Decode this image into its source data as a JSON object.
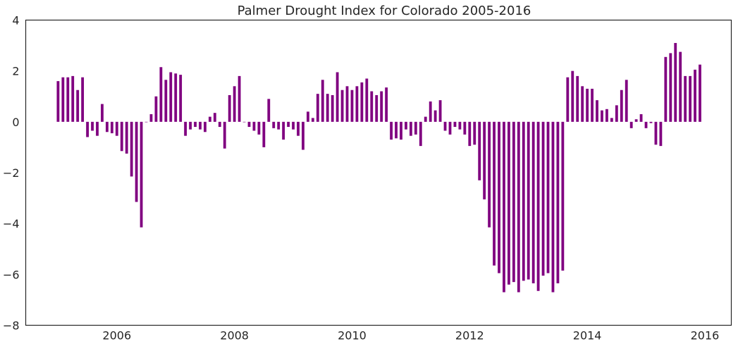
{
  "chart_data": {
    "type": "bar",
    "title": "Palmer Drought Index for Colorado 2005-2016",
    "xlabel": "",
    "ylabel": "",
    "bar_color": "#800080",
    "grid": false,
    "legend": "none",
    "xlim": [
      2004.45,
      2016.45
    ],
    "ylim": [
      -8,
      4
    ],
    "xticks": [
      2006,
      2008,
      2010,
      2012,
      2014,
      2016
    ],
    "xtick_labels": [
      "2006",
      "2008",
      "2010",
      "2012",
      "2014",
      "2016"
    ],
    "yticks": [
      4,
      2,
      0,
      -2,
      -4,
      -6,
      -8
    ],
    "ytick_labels": [
      "4",
      "2",
      "0",
      "−2",
      "−4",
      "−6",
      "−8"
    ],
    "x_start": 2005.0,
    "x_step_months": 1,
    "values": [
      1.6,
      1.75,
      1.75,
      1.8,
      1.25,
      1.75,
      -0.6,
      -0.35,
      -0.55,
      0.7,
      -0.4,
      -0.45,
      -0.55,
      -1.15,
      -1.25,
      -2.15,
      -3.15,
      -4.15,
      0.0,
      0.3,
      1.0,
      2.15,
      1.65,
      1.95,
      1.9,
      1.85,
      -0.55,
      -0.3,
      -0.2,
      -0.3,
      -0.4,
      0.2,
      0.35,
      -0.2,
      -1.05,
      1.05,
      1.4,
      1.8,
      0.0,
      -0.2,
      -0.35,
      -0.5,
      -1.0,
      0.9,
      -0.25,
      -0.3,
      -0.7,
      -0.2,
      -0.3,
      -0.55,
      -1.1,
      0.4,
      0.15,
      1.1,
      1.65,
      1.1,
      1.05,
      1.95,
      1.25,
      1.4,
      1.25,
      1.4,
      1.55,
      1.7,
      1.2,
      1.05,
      1.2,
      1.35,
      -0.7,
      -0.65,
      -0.7,
      -0.3,
      -0.55,
      -0.5,
      -0.95,
      0.2,
      0.8,
      0.45,
      0.85,
      -0.35,
      -0.5,
      -0.2,
      -0.3,
      -0.5,
      -0.95,
      -0.9,
      -2.3,
      -3.05,
      -4.15,
      -5.65,
      -5.95,
      -6.7,
      -6.4,
      -6.3,
      -6.7,
      -6.25,
      -6.2,
      -6.35,
      -6.65,
      -6.05,
      -5.95,
      -6.7,
      -6.35,
      -5.85,
      1.75,
      2.0,
      1.8,
      1.4,
      1.3,
      1.3,
      0.85,
      0.45,
      0.5,
      0.15,
      0.65,
      1.25,
      1.65,
      -0.25,
      0.1,
      0.3,
      -0.25,
      -0.05,
      -0.9,
      -0.95,
      2.55,
      2.7,
      3.1,
      2.75,
      1.8,
      1.8,
      2.05,
      2.25
    ]
  }
}
